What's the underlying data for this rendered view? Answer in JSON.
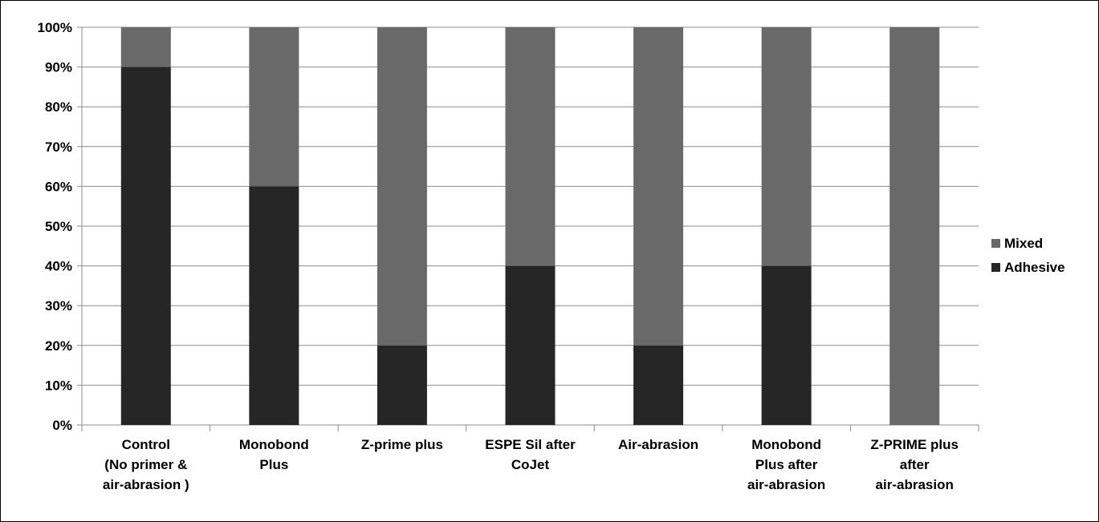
{
  "chart_data": {
    "type": "bar",
    "stacked": true,
    "percent_stacked": true,
    "categories": [
      [
        "Control",
        "(No  primer &",
        "air-abrasion )"
      ],
      [
        "Monobond",
        "Plus"
      ],
      [
        "Z-prime plus"
      ],
      [
        "ESPE Sil after",
        "CoJet"
      ],
      [
        "Air-abrasion"
      ],
      [
        "Monobond",
        "Plus after",
        "air-abrasion"
      ],
      [
        "Z-PRIME plus",
        "after",
        "air-abrasion"
      ]
    ],
    "series": [
      {
        "name": "Adhesive",
        "values": [
          90,
          60,
          20,
          40,
          20,
          40,
          0
        ],
        "color": "#262626"
      },
      {
        "name": "Mixed",
        "values": [
          10,
          40,
          80,
          60,
          80,
          60,
          100
        ],
        "color": "#696969"
      }
    ],
    "yticks": [
      "0%",
      "10%",
      "20%",
      "30%",
      "40%",
      "50%",
      "60%",
      "70%",
      "80%",
      "90%",
      "100%"
    ],
    "ylim": [
      0,
      100
    ],
    "grid": true,
    "legend_position": "right",
    "legend": [
      "Mixed",
      "Adhesive"
    ]
  }
}
